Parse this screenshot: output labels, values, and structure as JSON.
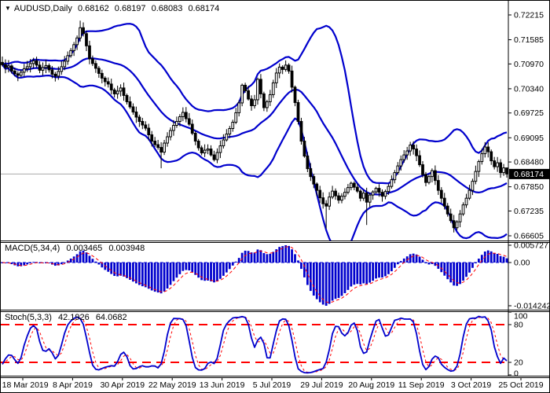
{
  "window": {
    "title_symbol": "AUDUSD,Daily",
    "ohlc": {
      "open": "0.68162",
      "high": "0.68197",
      "low": "0.68083",
      "close": "0.68174"
    }
  },
  "colors": {
    "band": "#0000CD",
    "bull_fill": "#FFFFFF",
    "bear_fill": "#000000",
    "candle_outline": "#000000",
    "macd_bar": "#0000CD",
    "macd_zero_line": "#0000CD",
    "signal_line": "#FF0000",
    "stoch_main": "#0000CD",
    "stoch_signal": "#FF0000",
    "level_line": "#FF0000",
    "price_line": "#AAAAAA",
    "price_box_bg": "#000000",
    "price_box_text": "#FFFFFF",
    "text": "#000000",
    "separator": "#000000"
  },
  "main_chart": {
    "y_ticks": [
      {
        "label": "0.72215",
        "value": 0.72215
      },
      {
        "label": "0.71585",
        "value": 0.71585
      },
      {
        "label": "0.70970",
        "value": 0.7097
      },
      {
        "label": "0.70340",
        "value": 0.7034
      },
      {
        "label": "0.69725",
        "value": 0.69725
      },
      {
        "label": "0.69095",
        "value": 0.69095
      },
      {
        "label": "0.68480",
        "value": 0.6848
      },
      {
        "label": "0.67850",
        "value": 0.6785
      },
      {
        "label": "0.67235",
        "value": 0.67235
      },
      {
        "label": "0.66605",
        "value": 0.66605
      }
    ],
    "price_max": 0.72215,
    "price_min": 0.66605,
    "current_price": "0.68174",
    "current_price_value": 0.68174
  },
  "macd": {
    "label": "MACD(5,34,4)",
    "value_main": "0.003465",
    "value_signal": "0.003948",
    "params": {
      "fast": 5,
      "slow": 34,
      "signal": 4
    },
    "y_ticks": [
      {
        "label": "0.005727",
        "value": 0.005727
      },
      {
        "label": "0.00",
        "value": 0
      },
      {
        "label": "-0.014242",
        "value": -0.014242
      }
    ],
    "display_max": 0.005727,
    "display_min": -0.014242
  },
  "stoch": {
    "label": "Stoch(5,3,3)",
    "value_main": "42.1926",
    "value_signal": "64.0682",
    "params": {
      "k": 5,
      "d": 3,
      "slowing": 3
    },
    "levels": [
      80,
      20
    ],
    "y_ticks": [
      {
        "label": "100",
        "value": 100
      },
      {
        "label": "80",
        "value": 80
      },
      {
        "label": "20",
        "value": 20
      },
      {
        "label": "0",
        "value": 0
      }
    ]
  },
  "chart_data": {
    "type": "candlestick",
    "symbol": "AUDUSD",
    "timeframe": "Daily",
    "title": "AUDUSD,Daily 0.68162 0.68197 0.68083 0.68174",
    "x_tick_labels": [
      "18 Mar 2019",
      "8 Apr 2019",
      "30 Apr 2019",
      "22 May 2019",
      "13 Jun 2019",
      "5 Jul 2019",
      "29 Jul 2019",
      "20 Aug 2019",
      "11 Sep 2019",
      "3 Oct 2019",
      "25 Oct 2019"
    ],
    "ylim": [
      0.66605,
      0.72215
    ],
    "overlays": [
      {
        "name": "Bollinger Bands",
        "period": 20,
        "deviation": 2,
        "color": "#0000CD"
      }
    ],
    "sub_indicators": [
      {
        "name": "MACD",
        "params": [
          5,
          34,
          4
        ],
        "last_main": 0.003465,
        "last_signal": 0.003948,
        "range": [
          -0.014242,
          0.005727
        ]
      },
      {
        "name": "Stochastic",
        "params": [
          5,
          3,
          3
        ],
        "last_main": 42.1926,
        "last_signal": 64.0682,
        "range": [
          0,
          100
        ],
        "levels": [
          20,
          80
        ]
      }
    ],
    "closes": [
      0.7095,
      0.7088,
      0.7092,
      0.7079,
      0.7072,
      0.7068,
      0.7076,
      0.7085,
      0.709,
      0.7098,
      0.7105,
      0.7094,
      0.7081,
      0.7088,
      0.7093,
      0.7082,
      0.7071,
      0.7066,
      0.7078,
      0.709,
      0.7104,
      0.7118,
      0.7131,
      0.7146,
      0.7163,
      0.7189,
      0.7174,
      0.7143,
      0.711,
      0.7098,
      0.7086,
      0.7073,
      0.7061,
      0.7052,
      0.7046,
      0.7031,
      0.7021,
      0.7028,
      0.7036,
      0.7017,
      0.7001,
      0.6988,
      0.6975,
      0.6962,
      0.6951,
      0.6942,
      0.6934,
      0.6917,
      0.6901,
      0.6892,
      0.6885,
      0.6873,
      0.6896,
      0.6912,
      0.6928,
      0.6941,
      0.6951,
      0.6963,
      0.6974,
      0.6958,
      0.6944,
      0.6921,
      0.6901,
      0.6884,
      0.6871,
      0.6878,
      0.6881,
      0.6866,
      0.6854,
      0.6872,
      0.6889,
      0.6904,
      0.6919,
      0.6933,
      0.6949,
      0.6973,
      0.6998,
      0.7043,
      0.7029,
      0.7008,
      0.6991,
      0.7006,
      0.7058,
      0.7021,
      0.6986,
      0.7001,
      0.7019,
      0.7049,
      0.7074,
      0.7089,
      0.7083,
      0.7094,
      0.7079,
      0.7038,
      0.6999,
      0.6951,
      0.6901,
      0.6863,
      0.6831,
      0.6811,
      0.6792,
      0.6776,
      0.6757,
      0.6742,
      0.6736,
      0.6759,
      0.6774,
      0.6762,
      0.6751,
      0.6761,
      0.6771,
      0.6783,
      0.6794,
      0.6784,
      0.6774,
      0.6756,
      0.6769,
      0.6746,
      0.6764,
      0.6772,
      0.6781,
      0.6771,
      0.6761,
      0.6773,
      0.6786,
      0.6803,
      0.6821,
      0.6838,
      0.6854,
      0.6866,
      0.6876,
      0.6891,
      0.6881,
      0.6864,
      0.6841,
      0.6816,
      0.6796,
      0.6811,
      0.6826,
      0.6801,
      0.6776,
      0.6756,
      0.6736,
      0.6716,
      0.6699,
      0.6681,
      0.6696,
      0.6716,
      0.6739,
      0.6756,
      0.6776,
      0.6799,
      0.6824,
      0.6849,
      0.6869,
      0.6886,
      0.6874,
      0.6851,
      0.6836,
      0.6846,
      0.6821,
      0.6833,
      0.68174
    ],
    "wick_overrides": {
      "25": {
        "h": 0.7207
      },
      "51": {
        "l": 0.6832
      },
      "104": {
        "l": 0.6679
      },
      "117": {
        "l": 0.6688
      },
      "145": {
        "l": 0.6669
      },
      "162": {
        "h": 0.68197,
        "l": 0.68083
      }
    }
  }
}
